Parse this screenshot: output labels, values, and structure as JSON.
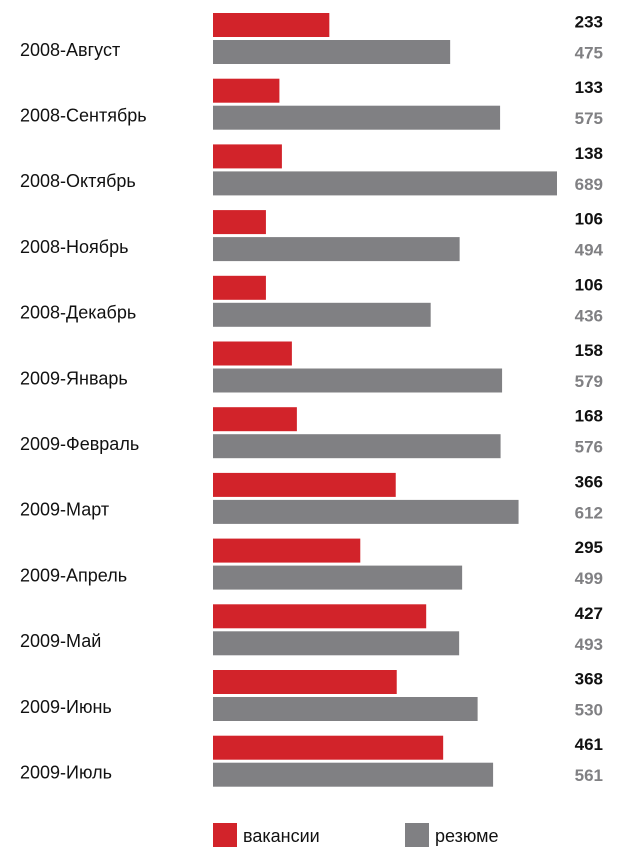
{
  "chart_data": {
    "type": "bar",
    "orientation": "horizontal",
    "categories": [
      "2008-Август",
      "2008-Сентябрь",
      "2008-Октябрь",
      "2008-Ноябрь",
      "2008-Декабрь",
      "2009-Январь",
      "2009-Февраль",
      "2009-Март",
      "2009-Апрель",
      "2009-Май",
      "2009-Июнь",
      "2009-Июль"
    ],
    "series": [
      {
        "name": "вакансии",
        "color": "#d2232a",
        "label_color": "#111111",
        "values": [
          233,
          133,
          138,
          106,
          106,
          158,
          168,
          366,
          295,
          427,
          368,
          461
        ]
      },
      {
        "name": "резюме",
        "color": "#808083",
        "label_color": "#808083",
        "values": [
          475,
          575,
          689,
          494,
          436,
          579,
          576,
          612,
          499,
          493,
          530,
          561
        ]
      }
    ],
    "legend": "bottom"
  }
}
